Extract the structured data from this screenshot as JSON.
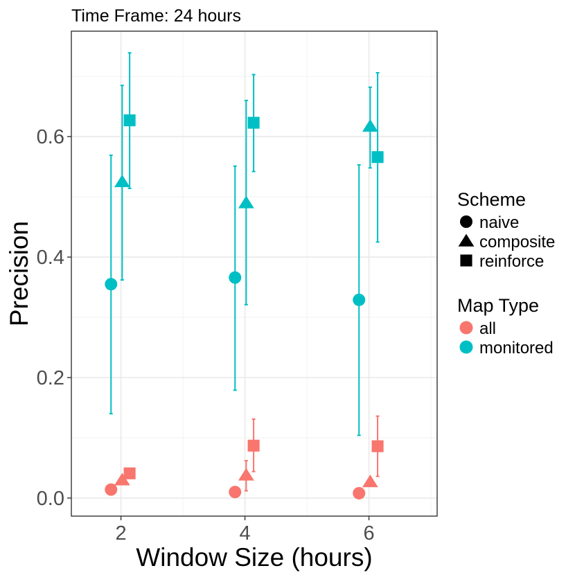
{
  "chart_data": {
    "type": "scatter",
    "title": "Time Frame: 24 hours",
    "xlabel": "Window Size (hours)",
    "ylabel": "Precision",
    "xlim": [
      1.2,
      7.1
    ],
    "ylim": [
      -0.03,
      0.775
    ],
    "x_ticks": [
      "2",
      "4",
      "6"
    ],
    "y_ticks": [
      "0.0",
      "0.2",
      "0.4",
      "0.6"
    ],
    "grid": true,
    "legend_placement": "right",
    "legends": [
      {
        "title": "Scheme",
        "items": [
          {
            "label": "naive",
            "shape": "circle"
          },
          {
            "label": "composite",
            "shape": "triangle"
          },
          {
            "label": "reinforce",
            "shape": "square"
          }
        ]
      },
      {
        "title": "Map Type",
        "items": [
          {
            "label": "all",
            "color": "#F8766D"
          },
          {
            "label": "monitored",
            "color": "#00BFC4"
          }
        ]
      }
    ],
    "colors": {
      "all": "#F8766D",
      "monitored": "#00BFC4"
    },
    "series": [
      {
        "map_type": "monitored",
        "scheme": "naive",
        "points": [
          {
            "x": 2,
            "y": 0.355,
            "ymin": 0.14,
            "ymax": 0.569
          },
          {
            "x": 4,
            "y": 0.366,
            "ymin": 0.179,
            "ymax": 0.551
          },
          {
            "x": 6,
            "y": 0.329,
            "ymin": 0.104,
            "ymax": 0.553
          }
        ]
      },
      {
        "map_type": "monitored",
        "scheme": "composite",
        "points": [
          {
            "x": 2,
            "y": 0.525,
            "ymin": 0.362,
            "ymax": 0.685
          },
          {
            "x": 4,
            "y": 0.49,
            "ymin": 0.321,
            "ymax": 0.66
          },
          {
            "x": 6,
            "y": 0.617,
            "ymin": 0.548,
            "ymax": 0.682
          }
        ]
      },
      {
        "map_type": "monitored",
        "scheme": "reinforce",
        "points": [
          {
            "x": 2,
            "y": 0.627,
            "ymin": 0.514,
            "ymax": 0.739
          },
          {
            "x": 4,
            "y": 0.623,
            "ymin": 0.542,
            "ymax": 0.703
          },
          {
            "x": 6,
            "y": 0.566,
            "ymin": 0.425,
            "ymax": 0.706
          }
        ]
      },
      {
        "map_type": "all",
        "scheme": "naive",
        "points": [
          {
            "x": 2,
            "y": 0.014,
            "ymin": 0.014,
            "ymax": 0.014
          },
          {
            "x": 4,
            "y": 0.01,
            "ymin": 0.01,
            "ymax": 0.01
          },
          {
            "x": 6,
            "y": 0.008,
            "ymin": 0.008,
            "ymax": 0.008
          }
        ]
      },
      {
        "map_type": "all",
        "scheme": "composite",
        "points": [
          {
            "x": 2,
            "y": 0.03,
            "ymin": 0.03,
            "ymax": 0.03
          },
          {
            "x": 4,
            "y": 0.038,
            "ymin": 0.012,
            "ymax": 0.062
          },
          {
            "x": 6,
            "y": 0.027,
            "ymin": 0.027,
            "ymax": 0.027
          }
        ]
      },
      {
        "map_type": "all",
        "scheme": "reinforce",
        "points": [
          {
            "x": 2,
            "y": 0.041,
            "ymin": 0.041,
            "ymax": 0.041
          },
          {
            "x": 4,
            "y": 0.087,
            "ymin": 0.044,
            "ymax": 0.131
          },
          {
            "x": 6,
            "y": 0.086,
            "ymin": 0.036,
            "ymax": 0.136
          }
        ]
      }
    ]
  }
}
